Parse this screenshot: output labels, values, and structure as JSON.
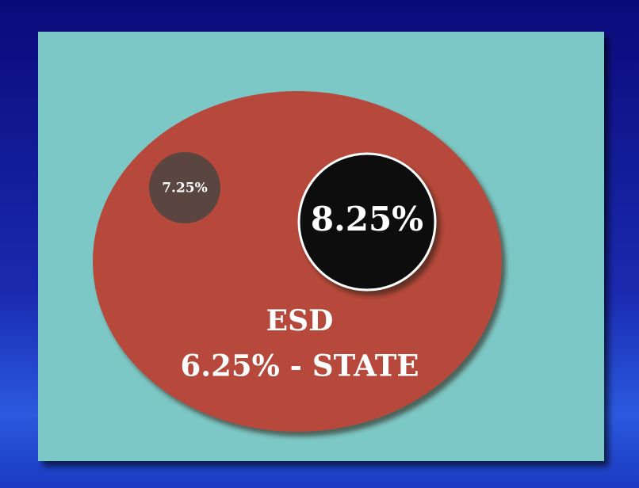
{
  "labels": {
    "local": "7.25%",
    "combined": "8.25%",
    "district": "ESD",
    "state": "6.25% - STATE"
  }
}
